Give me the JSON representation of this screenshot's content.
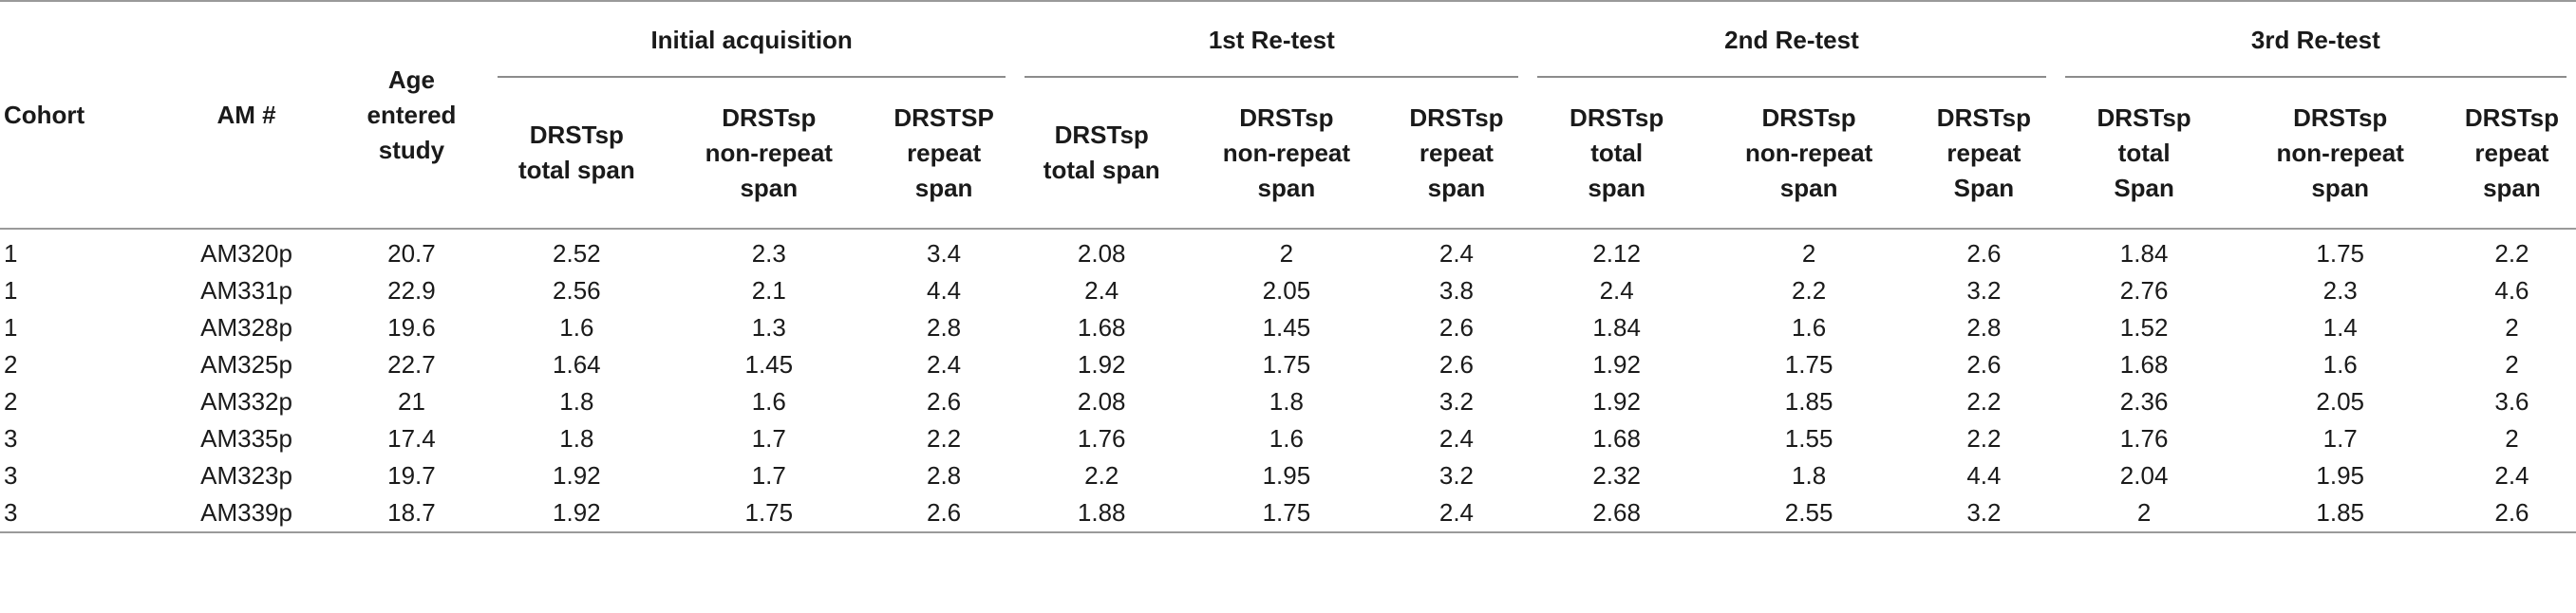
{
  "table": {
    "fixed_headers": {
      "cohort": "Cohort",
      "am": "AM #",
      "age": [
        "Age",
        "entered",
        "study"
      ]
    },
    "groups": [
      "Initial acquisition",
      "1st Re-test",
      "2nd Re-test",
      "3rd Re-test"
    ],
    "sub_headers": [
      [
        "DRSTsp",
        "total span"
      ],
      [
        "DRSTsp",
        "non-repeat",
        "span"
      ],
      [
        "DRSTSP",
        "repeat",
        "span"
      ],
      [
        "DRSTsp",
        "total span"
      ],
      [
        "DRSTsp",
        "non-repeat",
        "span"
      ],
      [
        "DRSTsp",
        "repeat",
        "span"
      ],
      [
        "DRSTsp",
        "total",
        "span"
      ],
      [
        "DRSTsp",
        "non-repeat",
        "span"
      ],
      [
        "DRSTsp",
        "repeat",
        "Span"
      ],
      [
        "DRSTsp",
        "total",
        "Span"
      ],
      [
        "DRSTsp",
        "non-repeat",
        "span"
      ],
      [
        "DRSTsp",
        "repeat",
        "span"
      ]
    ],
    "rows": [
      [
        "1",
        "AM320p",
        "20.7",
        "2.52",
        "2.3",
        "3.4",
        "2.08",
        "2",
        "2.4",
        "2.12",
        "2",
        "2.6",
        "1.84",
        "1.75",
        "2.2"
      ],
      [
        "1",
        "AM331p",
        "22.9",
        "2.56",
        "2.1",
        "4.4",
        "2.4",
        "2.05",
        "3.8",
        "2.4",
        "2.2",
        "3.2",
        "2.76",
        "2.3",
        "4.6"
      ],
      [
        "1",
        "AM328p",
        "19.6",
        "1.6",
        "1.3",
        "2.8",
        "1.68",
        "1.45",
        "2.6",
        "1.84",
        "1.6",
        "2.8",
        "1.52",
        "1.4",
        "2"
      ],
      [
        "2",
        "AM325p",
        "22.7",
        "1.64",
        "1.45",
        "2.4",
        "1.92",
        "1.75",
        "2.6",
        "1.92",
        "1.75",
        "2.6",
        "1.68",
        "1.6",
        "2"
      ],
      [
        "2",
        "AM332p",
        "21",
        "1.8",
        "1.6",
        "2.6",
        "2.08",
        "1.8",
        "3.2",
        "1.92",
        "1.85",
        "2.2",
        "2.36",
        "2.05",
        "3.6"
      ],
      [
        "3",
        "AM335p",
        "17.4",
        "1.8",
        "1.7",
        "2.2",
        "1.76",
        "1.6",
        "2.4",
        "1.68",
        "1.55",
        "2.2",
        "1.76",
        "1.7",
        "2"
      ],
      [
        "3",
        "AM323p",
        "19.7",
        "1.92",
        "1.7",
        "2.8",
        "2.2",
        "1.95",
        "3.2",
        "2.32",
        "1.8",
        "4.4",
        "2.04",
        "1.95",
        "2.4"
      ],
      [
        "3",
        "AM339p",
        "18.7",
        "1.92",
        "1.75",
        "2.6",
        "1.88",
        "1.75",
        "2.4",
        "2.68",
        "2.55",
        "3.2",
        "2",
        "1.85",
        "2.6"
      ]
    ]
  }
}
